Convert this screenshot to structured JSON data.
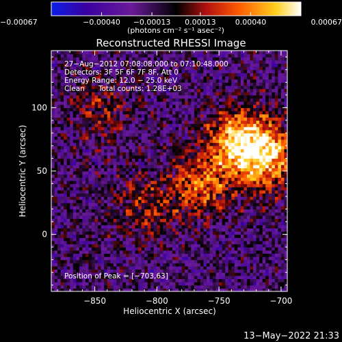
{
  "chart_data": {
    "type": "heatmap",
    "title": "Reconstructed RHESSI Image",
    "xlabel": "Heliocentric X (arcsec)",
    "ylabel": "Heliocentric Y (arcsec)",
    "xlim": [
      -885,
      -695
    ],
    "ylim": [
      -45,
      145
    ],
    "x_ticks": [
      -850,
      -800,
      -750,
      -700
    ],
    "x_tick_labels": [
      "−850",
      "−800",
      "−750",
      "−700"
    ],
    "y_ticks": [
      0,
      50,
      100
    ],
    "y_tick_labels": [
      "0",
      "50",
      "100"
    ],
    "colorbar": {
      "range": [
        -0.00067,
        0.00067
      ],
      "tick_values": [
        -0.00067,
        -0.0004,
        -0.00013,
        0.00013,
        0.0004,
        0.00067
      ],
      "tick_labels": [
        "−0.00067",
        "−0.00040",
        "−0.00013",
        "0.00013",
        "0.00040",
        "0.00067"
      ],
      "units_label": "(photons cm⁻² s⁻¹ asec⁻²)"
    },
    "info_lines": [
      "27−Aug−2012 07:08:08.000 to 07:10:48.000",
      "Detectors: 3F 5F 6F 7F 8F, Att 0",
      "Energy Range: 12.0 − 25.0 keV",
      "Clean      Total counts: 1.28E+03"
    ],
    "peak_text": "Position of Peak = [−703,63]",
    "peak_position": [
      -703,
      63
    ],
    "timestamp": "13−May−2022 21:33",
    "colormap": [
      "#0a1ee6",
      "#3a00a0",
      "#6a1a9a",
      "#000000",
      "#b01010",
      "#ff5a00",
      "#ffd020",
      "#ffffff"
    ],
    "emission_sources": [
      {
        "x": -735,
        "y": 75,
        "peak": 0.0006
      },
      {
        "x": -712,
        "y": 62,
        "peak": 0.00067
      },
      {
        "x": -765,
        "y": 40,
        "peak": 0.00045
      },
      {
        "x": -845,
        "y": 100,
        "peak": 0.00025
      },
      {
        "x": -810,
        "y": 20,
        "peak": 0.0003
      }
    ]
  }
}
